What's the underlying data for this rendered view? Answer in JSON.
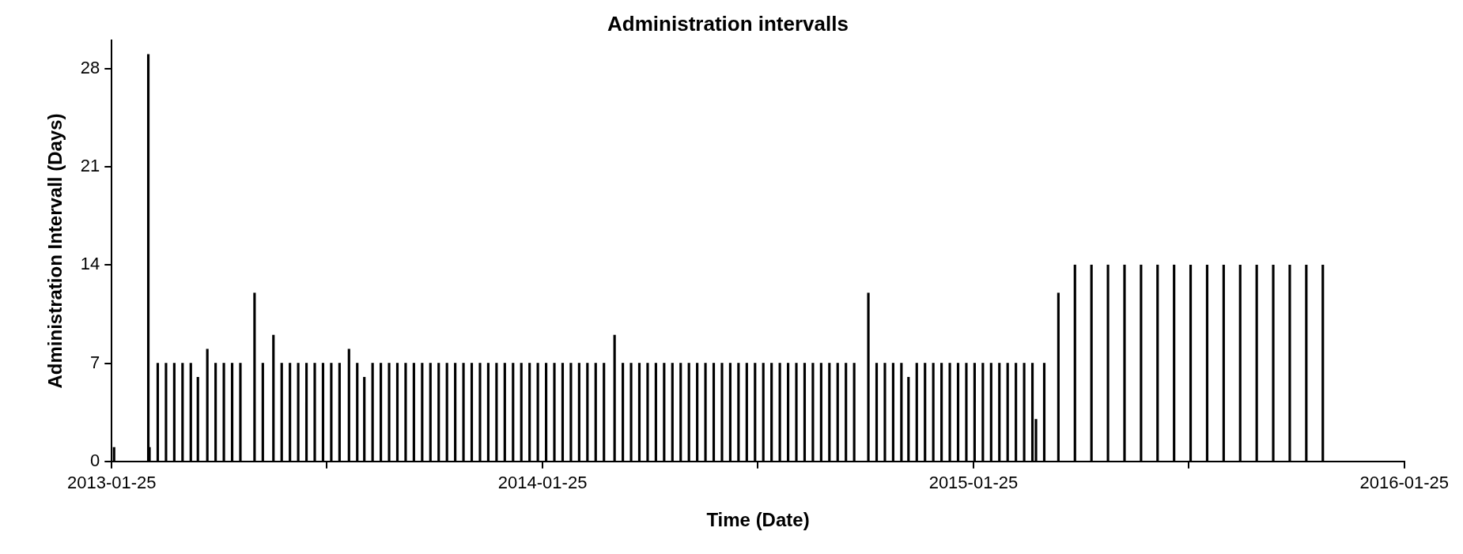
{
  "chart_data": {
    "type": "bar",
    "title": "Administration intervalls",
    "xlabel": "Time (Date)",
    "ylabel": "Administration Intervall (Days)",
    "color": "#000000",
    "x": [
      "2013-01-27",
      "2013-02-25",
      "2013-02-26",
      "2013-03-05",
      "2013-03-12",
      "2013-03-19",
      "2013-03-26",
      "2013-04-02",
      "2013-04-08",
      "2013-04-16",
      "2013-04-23",
      "2013-04-30",
      "2013-05-07",
      "2013-05-14",
      "2013-05-26",
      "2013-06-02",
      "2013-06-11",
      "2013-06-18",
      "2013-06-25",
      "2013-07-02",
      "2013-07-09",
      "2013-07-16",
      "2013-07-23",
      "2013-07-30",
      "2013-08-06",
      "2013-08-14",
      "2013-08-21",
      "2013-08-27",
      "2013-09-03",
      "2013-09-10",
      "2013-09-17",
      "2013-09-24",
      "2013-10-01",
      "2013-10-08",
      "2013-10-15",
      "2013-10-22",
      "2013-10-29",
      "2013-11-05",
      "2013-11-12",
      "2013-11-19",
      "2013-11-26",
      "2013-12-03",
      "2013-12-10",
      "2013-12-17",
      "2013-12-24",
      "2013-12-31",
      "2014-01-07",
      "2014-01-14",
      "2014-01-21",
      "2014-01-28",
      "2014-02-04",
      "2014-02-11",
      "2014-02-18",
      "2014-02-25",
      "2014-03-04",
      "2014-03-11",
      "2014-03-18",
      "2014-03-27",
      "2014-04-03",
      "2014-04-10",
      "2014-04-17",
      "2014-04-24",
      "2014-05-01",
      "2014-05-08",
      "2014-05-15",
      "2014-05-22",
      "2014-05-29",
      "2014-06-05",
      "2014-06-12",
      "2014-06-19",
      "2014-06-26",
      "2014-07-03",
      "2014-07-10",
      "2014-07-17",
      "2014-07-24",
      "2014-07-31",
      "2014-08-07",
      "2014-08-14",
      "2014-08-21",
      "2014-08-28",
      "2014-09-04",
      "2014-09-11",
      "2014-09-18",
      "2014-09-25",
      "2014-10-02",
      "2014-10-09",
      "2014-10-16",
      "2014-10-28",
      "2014-11-04",
      "2014-11-11",
      "2014-11-18",
      "2014-11-25",
      "2014-12-01",
      "2014-12-08",
      "2014-12-15",
      "2014-12-22",
      "2014-12-29",
      "2015-01-05",
      "2015-01-12",
      "2015-01-19",
      "2015-01-26",
      "2015-02-02",
      "2015-02-09",
      "2015-02-16",
      "2015-02-23",
      "2015-03-02",
      "2015-03-09",
      "2015-03-16",
      "2015-03-19",
      "2015-03-26",
      "2015-04-07",
      "2015-04-21",
      "2015-05-05",
      "2015-05-19",
      "2015-06-02",
      "2015-06-16",
      "2015-06-30",
      "2015-07-14",
      "2015-07-28",
      "2015-08-11",
      "2015-08-25",
      "2015-09-08",
      "2015-09-22",
      "2015-10-06",
      "2015-10-20",
      "2015-11-03",
      "2015-11-17"
    ],
    "values": [
      1,
      29,
      1,
      7,
      7,
      7,
      7,
      7,
      6,
      8,
      7,
      7,
      7,
      7,
      12,
      7,
      9,
      7,
      7,
      7,
      7,
      7,
      7,
      7,
      7,
      8,
      7,
      6,
      7,
      7,
      7,
      7,
      7,
      7,
      7,
      7,
      7,
      7,
      7,
      7,
      7,
      7,
      7,
      7,
      7,
      7,
      7,
      7,
      7,
      7,
      7,
      7,
      7,
      7,
      7,
      7,
      7,
      9,
      7,
      7,
      7,
      7,
      7,
      7,
      7,
      7,
      7,
      7,
      7,
      7,
      7,
      7,
      7,
      7,
      7,
      7,
      7,
      7,
      7,
      7,
      7,
      7,
      7,
      7,
      7,
      7,
      7,
      12,
      7,
      7,
      7,
      7,
      6,
      7,
      7,
      7,
      7,
      7,
      7,
      7,
      7,
      7,
      7,
      7,
      7,
      7,
      7,
      7,
      3,
      7,
      12,
      14,
      14,
      14,
      14,
      14,
      14,
      14,
      14,
      14,
      14,
      14,
      14,
      14,
      14,
      14,
      14
    ],
    "xlim": [
      "2013-01-25",
      "2016-01-25"
    ],
    "xticks": [
      "2013-01-25",
      {
        "value": "2013-07-26",
        "label": null
      },
      "2014-01-25",
      {
        "value": "2014-07-26",
        "label": null
      },
      "2015-01-25",
      {
        "value": "2015-07-26",
        "label": null
      },
      "2016-01-25"
    ],
    "ylim": [
      0,
      30
    ],
    "yticks": [
      0,
      7,
      14,
      21,
      28
    ],
    "grid": false,
    "legend": false
  }
}
